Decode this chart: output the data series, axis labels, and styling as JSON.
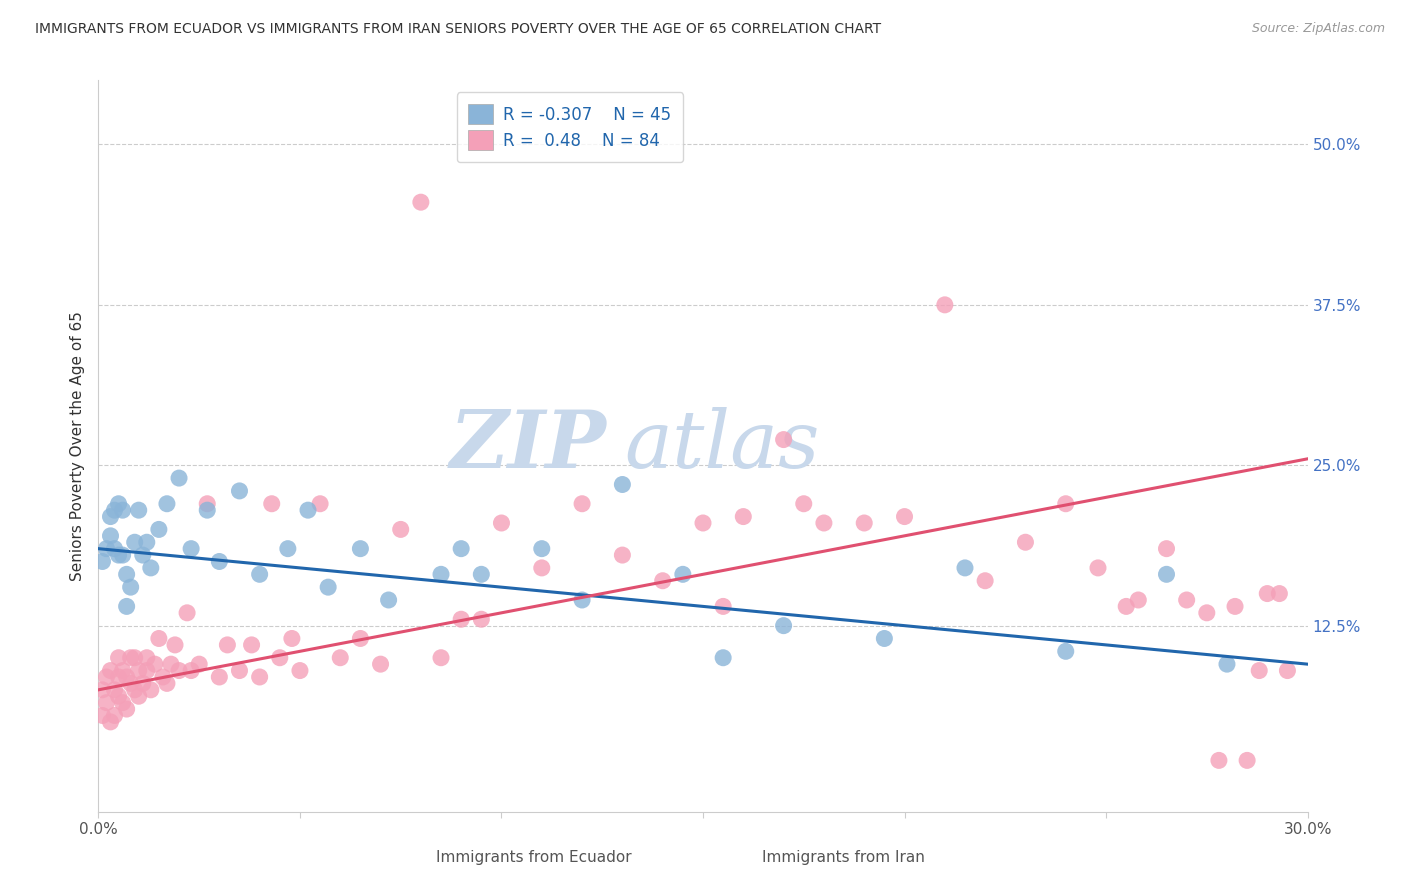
{
  "title": "IMMIGRANTS FROM ECUADOR VS IMMIGRANTS FROM IRAN SENIORS POVERTY OVER THE AGE OF 65 CORRELATION CHART",
  "source": "Source: ZipAtlas.com",
  "ylabel": "Seniors Poverty Over the Age of 65",
  "xlabel_ecuador": "Immigrants from Ecuador",
  "xlabel_iran": "Immigrants from Iran",
  "xlim": [
    0.0,
    0.3
  ],
  "ylim": [
    -0.02,
    0.55
  ],
  "yticks_right": [
    0.125,
    0.25,
    0.375,
    0.5
  ],
  "ytick_labels_right": [
    "12.5%",
    "25.0%",
    "37.5%",
    "50.0%"
  ],
  "xticks": [
    0.0,
    0.05,
    0.1,
    0.15,
    0.2,
    0.25,
    0.3
  ],
  "xtick_labels": [
    "0.0%",
    "",
    "",
    "",
    "",
    "",
    "30.0%"
  ],
  "ecuador_color": "#8ab4d8",
  "iran_color": "#f4a0b8",
  "ecuador_line_color": "#2166ac",
  "iran_line_color": "#e05070",
  "R_ecuador": -0.307,
  "N_ecuador": 45,
  "R_iran": 0.48,
  "N_iran": 84,
  "ecuador_line_x0": 0.0,
  "ecuador_line_y0": 0.185,
  "ecuador_line_x1": 0.3,
  "ecuador_line_y1": 0.095,
  "iran_line_x0": 0.0,
  "iran_line_y0": 0.075,
  "iran_line_x1": 0.3,
  "iran_line_y1": 0.255,
  "ecuador_x": [
    0.001,
    0.002,
    0.003,
    0.003,
    0.004,
    0.004,
    0.005,
    0.005,
    0.006,
    0.006,
    0.007,
    0.007,
    0.008,
    0.009,
    0.01,
    0.011,
    0.012,
    0.013,
    0.015,
    0.017,
    0.02,
    0.023,
    0.027,
    0.03,
    0.035,
    0.04,
    0.047,
    0.052,
    0.057,
    0.065,
    0.072,
    0.085,
    0.09,
    0.095,
    0.11,
    0.12,
    0.13,
    0.145,
    0.155,
    0.17,
    0.195,
    0.215,
    0.24,
    0.265,
    0.28
  ],
  "ecuador_y": [
    0.175,
    0.185,
    0.195,
    0.21,
    0.185,
    0.215,
    0.18,
    0.22,
    0.18,
    0.215,
    0.14,
    0.165,
    0.155,
    0.19,
    0.215,
    0.18,
    0.19,
    0.17,
    0.2,
    0.22,
    0.24,
    0.185,
    0.215,
    0.175,
    0.23,
    0.165,
    0.185,
    0.215,
    0.155,
    0.185,
    0.145,
    0.165,
    0.185,
    0.165,
    0.185,
    0.145,
    0.235,
    0.165,
    0.1,
    0.125,
    0.115,
    0.17,
    0.105,
    0.165,
    0.095
  ],
  "iran_x": [
    0.001,
    0.001,
    0.002,
    0.002,
    0.003,
    0.003,
    0.004,
    0.004,
    0.005,
    0.005,
    0.005,
    0.006,
    0.006,
    0.007,
    0.007,
    0.008,
    0.008,
    0.009,
    0.009,
    0.01,
    0.01,
    0.011,
    0.012,
    0.012,
    0.013,
    0.014,
    0.015,
    0.016,
    0.017,
    0.018,
    0.019,
    0.02,
    0.022,
    0.023,
    0.025,
    0.027,
    0.03,
    0.032,
    0.035,
    0.038,
    0.04,
    0.043,
    0.045,
    0.048,
    0.05,
    0.055,
    0.06,
    0.065,
    0.07,
    0.075,
    0.08,
    0.085,
    0.09,
    0.095,
    0.1,
    0.11,
    0.12,
    0.13,
    0.14,
    0.15,
    0.155,
    0.16,
    0.17,
    0.175,
    0.18,
    0.19,
    0.2,
    0.21,
    0.22,
    0.23,
    0.24,
    0.248,
    0.255,
    0.258,
    0.265,
    0.27,
    0.275,
    0.278,
    0.282,
    0.285,
    0.288,
    0.29,
    0.293,
    0.295
  ],
  "iran_y": [
    0.055,
    0.075,
    0.065,
    0.085,
    0.05,
    0.09,
    0.055,
    0.075,
    0.07,
    0.085,
    0.1,
    0.065,
    0.09,
    0.06,
    0.085,
    0.08,
    0.1,
    0.075,
    0.1,
    0.07,
    0.09,
    0.08,
    0.1,
    0.09,
    0.075,
    0.095,
    0.115,
    0.085,
    0.08,
    0.095,
    0.11,
    0.09,
    0.135,
    0.09,
    0.095,
    0.22,
    0.085,
    0.11,
    0.09,
    0.11,
    0.085,
    0.22,
    0.1,
    0.115,
    0.09,
    0.22,
    0.1,
    0.115,
    0.095,
    0.2,
    0.455,
    0.1,
    0.13,
    0.13,
    0.205,
    0.17,
    0.22,
    0.18,
    0.16,
    0.205,
    0.14,
    0.21,
    0.27,
    0.22,
    0.205,
    0.205,
    0.21,
    0.375,
    0.16,
    0.19,
    0.22,
    0.17,
    0.14,
    0.145,
    0.185,
    0.145,
    0.135,
    0.02,
    0.14,
    0.02,
    0.09,
    0.15,
    0.15,
    0.09
  ]
}
